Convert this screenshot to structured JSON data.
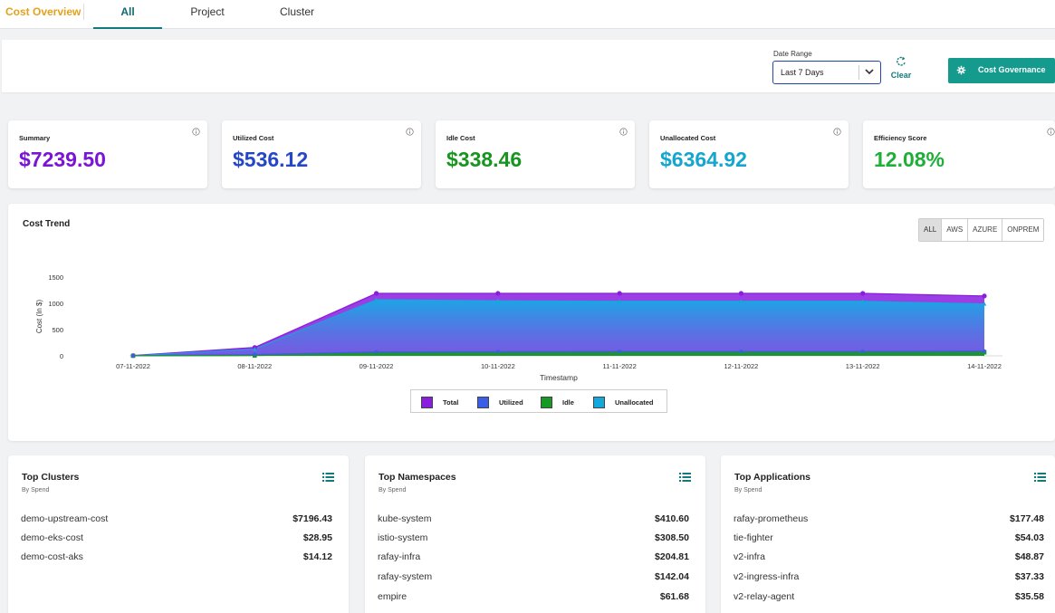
{
  "app": {
    "title": "Cost Overview"
  },
  "tabs": [
    {
      "label": "All",
      "active": true
    },
    {
      "label": "Project",
      "active": false
    },
    {
      "label": "Cluster",
      "active": false
    }
  ],
  "filters": {
    "date_range_label": "Date Range",
    "date_range_value": "Last 7 Days",
    "clear_label": "Clear",
    "governance_label": "Cost Governance"
  },
  "summary_cards": [
    {
      "label": "Summary",
      "value": "$7239.50",
      "color": "#7a14d6"
    },
    {
      "label": "Utilized Cost",
      "value": "$536.12",
      "color": "#2347c7"
    },
    {
      "label": "Idle Cost",
      "value": "$338.46",
      "color": "#17951f"
    },
    {
      "label": "Unallocated Cost",
      "value": "$6364.92",
      "color": "#15a6cf"
    },
    {
      "label": "Efficiency Score",
      "value": "12.08%",
      "color": "#1fae38"
    }
  ],
  "trend": {
    "title": "Cost Trend",
    "cloud_filters": [
      "ALL",
      "AWS",
      "AZURE",
      "ONPREM"
    ],
    "active_cloud": "ALL"
  },
  "chart_data": {
    "type": "area",
    "title": "Cost Trend",
    "xlabel": "Timestamp",
    "ylabel": "Cost (In $)",
    "ylim": [
      0,
      1500
    ],
    "yticks": [
      0,
      500,
      1000,
      1500
    ],
    "categories": [
      "07-11-2022",
      "08-11-2022",
      "09-11-2022",
      "10-11-2022",
      "11-11-2022",
      "12-11-2022",
      "13-11-2022",
      "14-11-2022"
    ],
    "series": [
      {
        "name": "Total",
        "color": "#8a1de0",
        "values": [
          5,
          160,
          1190,
          1190,
          1190,
          1190,
          1190,
          1140
        ]
      },
      {
        "name": "Utilized",
        "color": "#3b5ee8",
        "values": [
          2,
          25,
          75,
          80,
          85,
          85,
          85,
          90
        ]
      },
      {
        "name": "Idle",
        "color": "#169a24",
        "values": [
          1,
          5,
          50,
          55,
          60,
          60,
          60,
          65
        ]
      },
      {
        "name": "Unallocated",
        "color": "#12a8dc",
        "values": [
          2,
          130,
          1070,
          1050,
          1040,
          1040,
          1040,
          990
        ]
      }
    ],
    "legend_position": "bottom-center",
    "grid": false
  },
  "lists": [
    {
      "title": "Top Clusters",
      "subtitle": "By Spend",
      "rows": [
        {
          "name": "demo-upstream-cost",
          "amount": "$7196.43"
        },
        {
          "name": "demo-eks-cost",
          "amount": "$28.95"
        },
        {
          "name": "demo-cost-aks",
          "amount": "$14.12"
        }
      ]
    },
    {
      "title": "Top Namespaces",
      "subtitle": "By Spend",
      "rows": [
        {
          "name": "kube-system",
          "amount": "$410.60"
        },
        {
          "name": "istio-system",
          "amount": "$308.50"
        },
        {
          "name": "rafay-infra",
          "amount": "$204.81"
        },
        {
          "name": "rafay-system",
          "amount": "$142.04"
        },
        {
          "name": "empire",
          "amount": "$61.68"
        }
      ]
    },
    {
      "title": "Top Applications",
      "subtitle": "By Spend",
      "rows": [
        {
          "name": "rafay-prometheus",
          "amount": "$177.48"
        },
        {
          "name": "tie-fighter",
          "amount": "$54.03"
        },
        {
          "name": "v2-infra",
          "amount": "$48.87"
        },
        {
          "name": "v2-ingress-infra",
          "amount": "$37.33"
        },
        {
          "name": "v2-relay-agent",
          "amount": "$35.58"
        }
      ]
    }
  ]
}
